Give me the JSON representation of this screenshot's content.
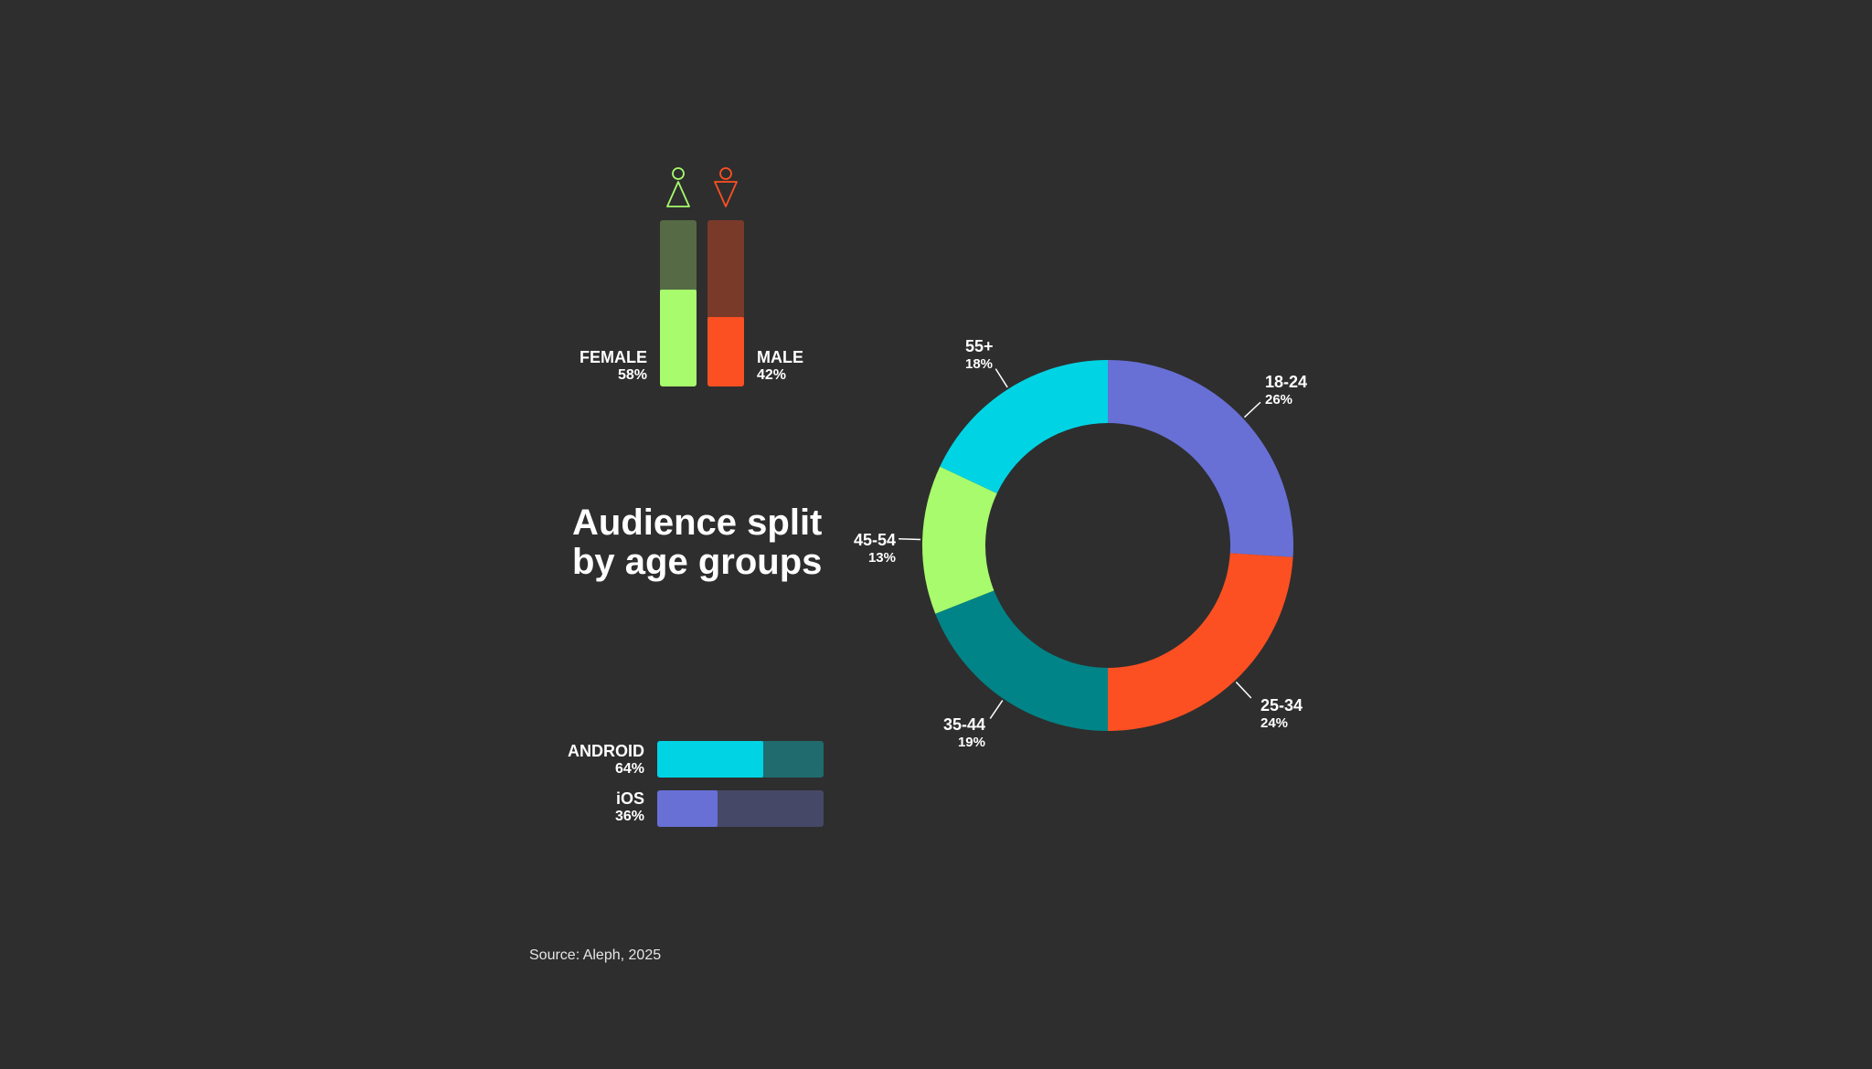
{
  "title": "Audience split by age groups",
  "source": "Source: Aleph, 2025",
  "colors": {
    "female": "#a8fb6c",
    "female_track": "#566b45",
    "male": "#fd5022",
    "male_track": "#7a3a2a",
    "android": "#00d4e4",
    "android_track": "#1f6b6e",
    "ios": "#6870d6",
    "ios_track": "#464867"
  },
  "gender": {
    "female": {
      "label": "FEMALE",
      "pct": "58%",
      "value": 58,
      "icon": "female-icon"
    },
    "male": {
      "label": "MALE",
      "pct": "42%",
      "value": 42,
      "icon": "male-icon"
    }
  },
  "platforms": {
    "android": {
      "label": "ANDROID",
      "pct": "64%",
      "value": 64
    },
    "ios": {
      "label": "iOS",
      "pct": "36%",
      "value": 36
    }
  },
  "chart_data": {
    "type": "pie",
    "donut": true,
    "title": "Audience split by age groups",
    "categories": [
      "18-24",
      "25-34",
      "35-44",
      "45-54",
      "55+"
    ],
    "values": [
      26,
      24,
      19,
      13,
      18
    ],
    "labels": [
      "26%",
      "24%",
      "19%",
      "13%",
      "18%"
    ],
    "colors": [
      "#6870d6",
      "#fd5022",
      "#008487",
      "#a8fb6c",
      "#00d4e4"
    ]
  }
}
